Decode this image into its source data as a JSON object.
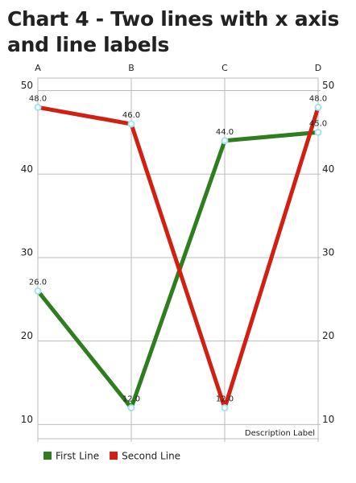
{
  "chart_data": {
    "type": "line",
    "title": "Chart 4 - Two lines with x axis and line labels",
    "categories": [
      "A",
      "B",
      "C",
      "D"
    ],
    "series": [
      {
        "name": "First Line",
        "color": "#2e7d1e",
        "values": [
          26,
          12,
          44,
          45
        ],
        "value_labels": [
          "26.0",
          "12.0",
          "44.0",
          "45.0"
        ]
      },
      {
        "name": "Second Line",
        "color": "#d11f12",
        "values": [
          48,
          46,
          12,
          48
        ],
        "value_labels": [
          "48.0",
          "46.0",
          "12.0",
          "48.0"
        ]
      }
    ],
    "ylim": [
      8.3,
      51.5
    ],
    "yticks": [
      10,
      20,
      30,
      40,
      50
    ],
    "y2lim": [
      8.3,
      51.5
    ],
    "y2ticks": [
      10,
      20,
      30,
      40,
      50
    ],
    "description": "Description Label",
    "grid": true
  }
}
